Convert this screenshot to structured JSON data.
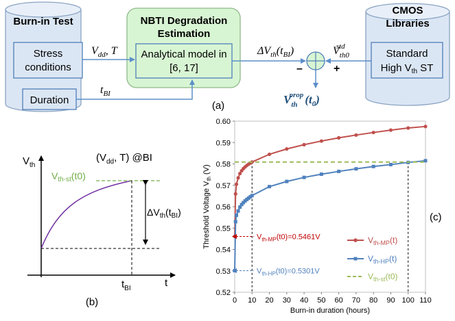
{
  "flow": {
    "burnin": {
      "title": "Burn-in Test",
      "stress": [
        "Stress",
        "conditions"
      ],
      "duration": "Duration"
    },
    "nbti": {
      "title": [
        "NBTI Degradation",
        "Estimation"
      ],
      "model": [
        "Analytical model in",
        "[6, 17]"
      ]
    },
    "cmos": {
      "title": [
        "CMOS",
        "Libraries"
      ],
      "st_line1": "Standard",
      "st_line2_prefix": "High V",
      "st_line2_sub": "th",
      "st_line2_suffix": " ST"
    },
    "labels": {
      "vdd_main": "V",
      "vdd_sub": "dd",
      "vdd_rest": ", T",
      "tbi_main": "t",
      "tbi_sub": "BI",
      "dv_main": "ΔV",
      "dv_sub": "th",
      "dv_rest": "(t",
      "dv_rest_sub": "BI",
      "dv_close": ")",
      "vstd_main": "V",
      "vstd_sub": "th0",
      "vstd_sup": "std",
      "vprop_main": "V",
      "vprop_sub": "th",
      "vprop_sup": "prop",
      "vprop_rest": "(t",
      "vprop_rest_sub": "0",
      "vprop_close": ")",
      "minus": "–",
      "plus": "+"
    },
    "caption": "(a)"
  },
  "panel_b": {
    "caption": "(b)",
    "cond_prefix": "(V",
    "cond_sub": "dd",
    "cond_rest": ", T) @BI",
    "y_axis_main": "V",
    "y_axis_sub": "th",
    "x_axis": "t",
    "vst_main": "V",
    "vst_sub": "th-st",
    "vst_rest": "(t0)",
    "dv_main": "ΔV",
    "dv_sub": "th",
    "dv_rest": "(t",
    "dv_rest_sub": "BI",
    "dv_close": ")",
    "tbi_main": "t",
    "tbi_sub": "BI"
  },
  "chart_data": {
    "type": "line",
    "caption": "(c)",
    "xlabel": "Burn-in duration (hours)",
    "ylabel_main": "Threshold Voltage V",
    "ylabel_sub": "th",
    "ylabel_rest": " (V)",
    "xlim": [
      0,
      110
    ],
    "ylim": [
      0.52,
      0.6
    ],
    "x_ticks": [
      0,
      10,
      20,
      30,
      40,
      50,
      60,
      70,
      80,
      90,
      100,
      110
    ],
    "y_ticks": [
      "0.52",
      "0.53",
      "0.54",
      "0.55",
      "0.56",
      "0.57",
      "0.58",
      "0.59",
      "0.60"
    ],
    "series": [
      {
        "name_main": "V",
        "name_sub": "th-MP",
        "name_rest": "(t)",
        "color": "#c0504d",
        "marker": "circle",
        "x": [
          0,
          0.5,
          1,
          2,
          3,
          4,
          5,
          6,
          7,
          8,
          9,
          10,
          20,
          30,
          40,
          50,
          60,
          70,
          80,
          90,
          100,
          110
        ],
        "y": [
          0.5461,
          0.566,
          0.5705,
          0.5735,
          0.5755,
          0.5768,
          0.5778,
          0.5786,
          0.5793,
          0.5799,
          0.5804,
          0.5809,
          0.5845,
          0.587,
          0.589,
          0.5907,
          0.5922,
          0.5935,
          0.5947,
          0.5958,
          0.5968,
          0.5975
        ]
      },
      {
        "name_main": "V",
        "name_sub": "th-HP",
        "name_rest": "(t)",
        "color": "#4f81bd",
        "marker": "square",
        "x": [
          0,
          0.5,
          1,
          2,
          3,
          4,
          5,
          6,
          7,
          8,
          9,
          10,
          20,
          30,
          40,
          50,
          60,
          70,
          80,
          90,
          100,
          110
        ],
        "y": [
          0.5301,
          0.553,
          0.556,
          0.558,
          0.5598,
          0.561,
          0.5619,
          0.5627,
          0.5634,
          0.564,
          0.5646,
          0.5652,
          0.5694,
          0.5718,
          0.5737,
          0.5752,
          0.5765,
          0.5777,
          0.5788,
          0.5797,
          0.5807,
          0.5815
        ]
      },
      {
        "name_main": "V",
        "name_sub": "th-st",
        "name_rest": "(t0)",
        "color": "#9bbb59",
        "dashed": true,
        "x": [
          0,
          110
        ],
        "y": [
          0.5809,
          0.5809
        ]
      }
    ],
    "annotations": [
      {
        "main": "V",
        "sub": "th-MP",
        "rest": "(t0)=0.5461V",
        "color": "#c00000",
        "y": 0.5461
      },
      {
        "main": "V",
        "sub": "th-HP",
        "rest": "(t0)=0.5301V",
        "color": "#4f81bd",
        "y": 0.5301
      }
    ],
    "vlines_x": [
      10,
      100
    ]
  }
}
